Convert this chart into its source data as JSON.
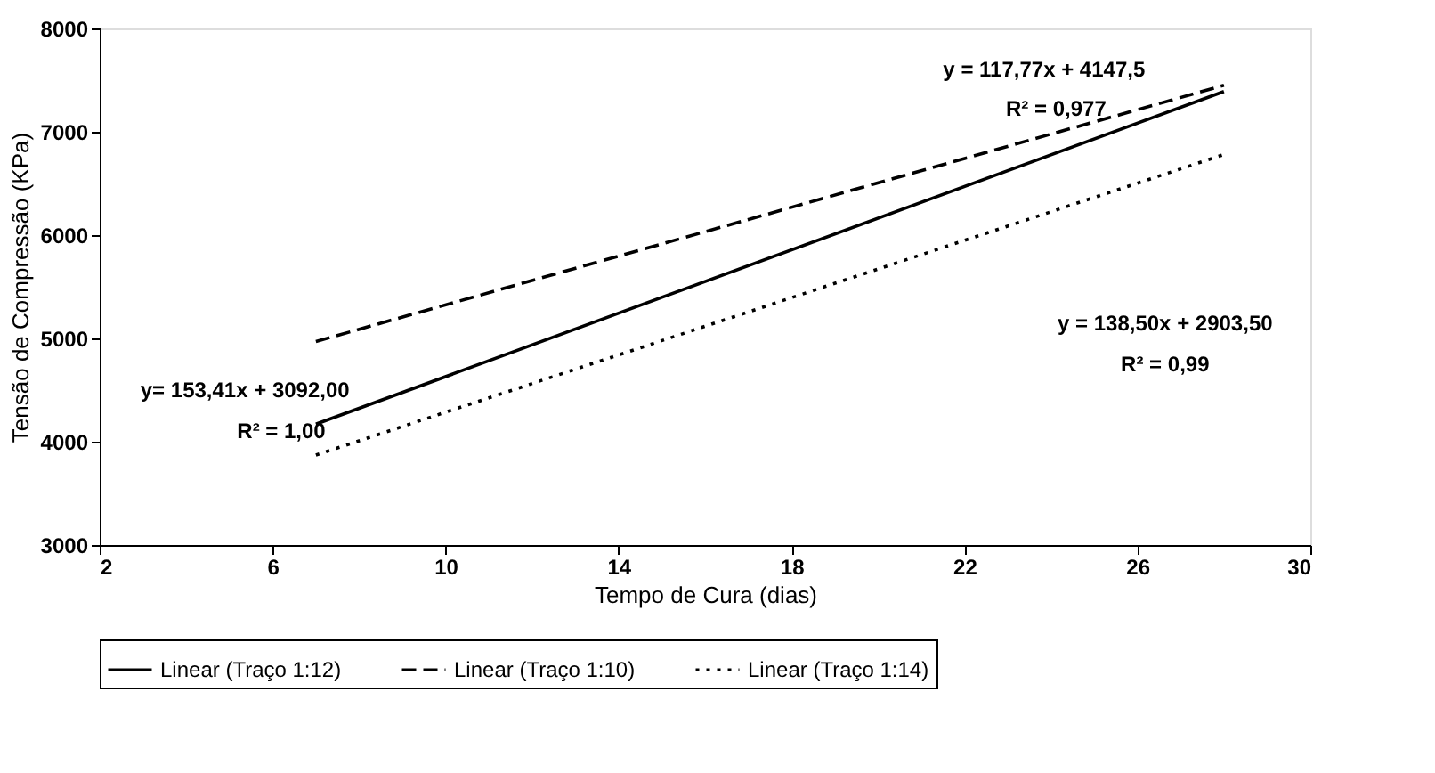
{
  "chart_data": {
    "type": "line",
    "xlabel": "Tempo de Cura (dias)",
    "ylabel": "Tensão de Compressão (KPa)",
    "xlim": [
      2,
      30
    ],
    "xticks": [
      2,
      6,
      10,
      14,
      18,
      22,
      26,
      30
    ],
    "ylim": [
      3000,
      8000
    ],
    "yticks": [
      3000,
      4000,
      5000,
      6000,
      7000,
      8000
    ],
    "grid": false,
    "legend": "bottom",
    "marker": "none",
    "x": [
      7,
      28
    ],
    "series": [
      {
        "name": "Linear (Traço 1:12)",
        "color": "#000000",
        "line_style": "solid",
        "values": [
          4170,
          7390
        ]
      },
      {
        "name": "Linear (Traço 1:10)",
        "color": "#000000",
        "line_style": "dashed",
        "values": [
          4970,
          7450
        ]
      },
      {
        "name": "Linear (Traço 1:14)",
        "color": "#000000",
        "line_style": "dotted",
        "values": [
          3870,
          6780
        ]
      }
    ],
    "annotations": [
      "y= 153,41x + 3092,00",
      "R² = 1,00",
      "y = 117,77x + 4147,5",
      "R² = 0,977",
      "y = 138,50x + 2903,50",
      "R² = 0,99"
    ]
  }
}
